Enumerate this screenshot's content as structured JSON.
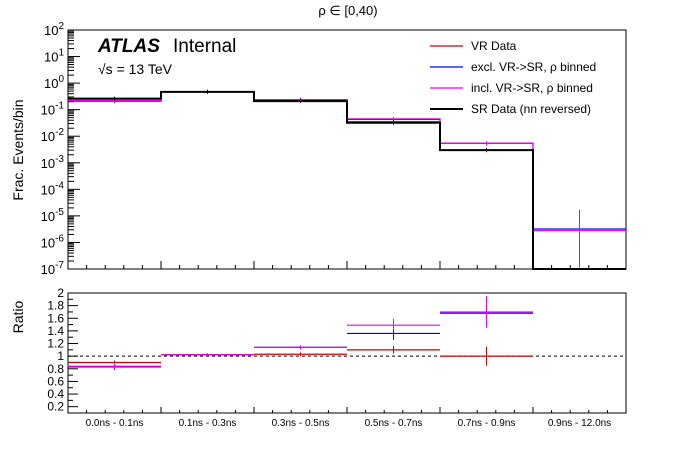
{
  "chart_data": {
    "type": "histogram",
    "title": "ρ ∈ [0,40)",
    "atlas_label": {
      "bold": "ATLAS",
      "rest": "Internal",
      "energy": "√s = 13 TeV"
    },
    "categories": [
      "0.0ns - 0.1ns",
      "0.1ns - 0.3ns",
      "0.3ns - 0.5ns",
      "0.5ns - 0.7ns",
      "0.7ns - 0.9ns",
      "0.9ns - 12.0ns"
    ],
    "top": {
      "ylabel": "Frac. Events/bin",
      "yscale": "log",
      "ylim": [
        1e-07,
        100
      ],
      "tick_exponents": [
        -7,
        -6,
        -5,
        -4,
        -3,
        -2,
        -1,
        0,
        1,
        2
      ],
      "series": [
        {
          "name": "VR Data",
          "color": "#cc0000",
          "values": [
            0.25,
            0.48,
            0.22,
            0.035,
            0.003,
            null
          ]
        },
        {
          "name": "excl. VR->SR, ρ binned",
          "color": "#0000ee",
          "values": [
            0.21,
            0.48,
            0.24,
            0.043,
            0.0054,
            3.2e-06
          ],
          "errors": [
            null,
            null,
            null,
            null,
            null,
            1.2e-05
          ]
        },
        {
          "name": "incl. VR->SR, ρ binned",
          "color": "#ee00ee",
          "values": [
            0.22,
            0.48,
            0.24,
            0.045,
            0.0055,
            2.8e-06
          ],
          "errors": [
            null,
            null,
            null,
            null,
            null,
            1.4e-05
          ]
        },
        {
          "name": "SR Data (nn reversed)",
          "color": "#000000",
          "values": [
            0.26,
            0.47,
            0.21,
            0.032,
            0.003,
            null
          ]
        }
      ]
    },
    "ratio": {
      "ylabel": "Ratio",
      "ylim": [
        0.1,
        2.0
      ],
      "ticks": [
        "0.2",
        "0.4",
        "0.6",
        "0.8",
        "1",
        "1.2",
        "1.4",
        "1.6",
        "1.8",
        "2"
      ],
      "reference_line": 1.0,
      "series": [
        {
          "name": "VR Data",
          "color": "#cc0000",
          "values": [
            0.9,
            1.02,
            1.03,
            1.1,
            1.0,
            null
          ],
          "errors": [
            0.03,
            0.03,
            0.03,
            0.06,
            0.15,
            null
          ]
        },
        {
          "name": "excl. VR->SR, ρ binned",
          "color": "#0000ee",
          "values": [
            0.83,
            1.02,
            1.14,
            1.36,
            1.68,
            null
          ],
          "errors": [
            0.05,
            0.03,
            0.03,
            0.1,
            0.2,
            null
          ]
        },
        {
          "name": "incl. VR->SR, ρ binned",
          "color": "#ee00ee",
          "values": [
            0.84,
            1.02,
            1.14,
            1.49,
            1.7,
            null
          ],
          "errors": [
            0.05,
            0.03,
            0.03,
            0.1,
            0.25,
            null
          ]
        }
      ]
    }
  }
}
